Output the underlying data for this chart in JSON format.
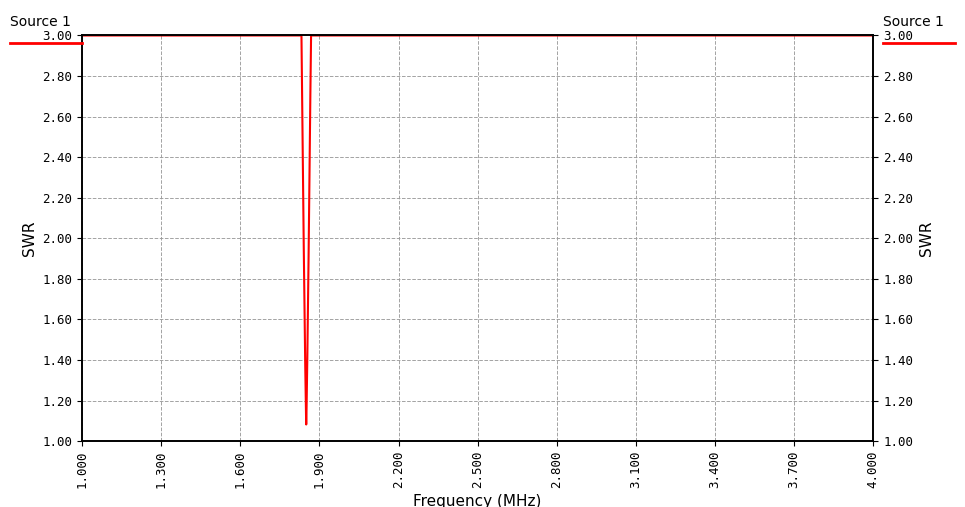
{
  "xlabel": "Frequency (MHz)",
  "ylabel_left": "SWR",
  "ylabel_right": "SWR",
  "legend_label": "Source 1",
  "legend_color": "#ff0000",
  "xmin": 1.0,
  "xmax": 4.0,
  "ymin": 1.0,
  "ymax": 3.0,
  "xticks": [
    1.0,
    1.3,
    1.6,
    1.9,
    2.2,
    2.5,
    2.8,
    3.1,
    3.4,
    3.7,
    4.0
  ],
  "yticks": [
    1.0,
    1.2,
    1.4,
    1.6,
    1.8,
    2.0,
    2.2,
    2.4,
    2.6,
    2.8,
    3.0
  ],
  "line_color": "#ff0000",
  "background_color": "#ffffff",
  "grid_color": "#999999",
  "resonance_freq": 1.85,
  "resonance_min": 1.08,
  "flat_swr": 3.0,
  "bandwidth": 0.018
}
